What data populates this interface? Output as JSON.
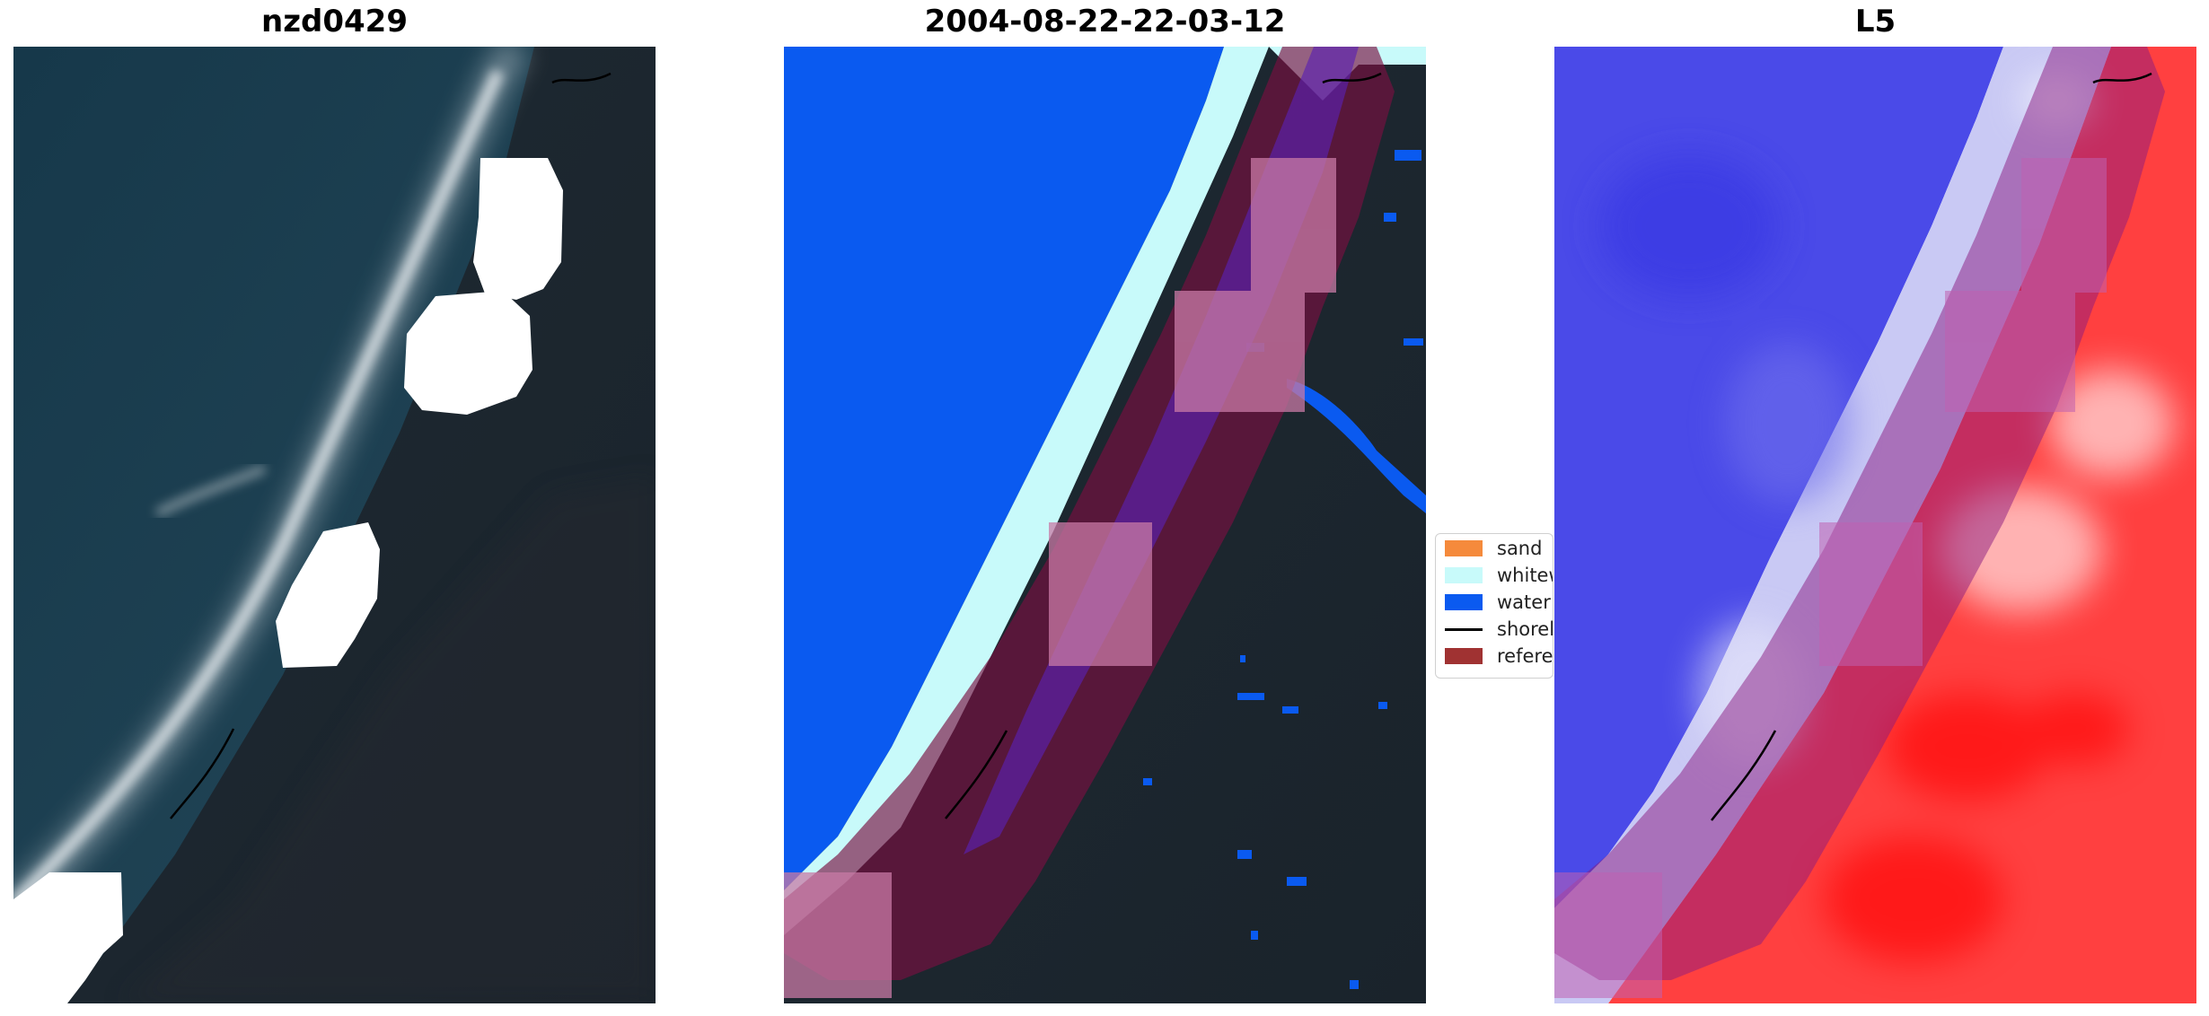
{
  "panels": [
    {
      "title": "nzd0429"
    },
    {
      "title": "2004-08-22-22-03-12"
    },
    {
      "title": "L5"
    }
  ],
  "legend": {
    "items": [
      {
        "label": "sand",
        "color": "#f58a3c"
      },
      {
        "label": "whitew",
        "color": "#c8fafa"
      },
      {
        "label": "water",
        "color": "#0a5af0"
      },
      {
        "label": "shorel",
        "color": "#000000"
      },
      {
        "label": "referen",
        "color": "#a03232"
      }
    ]
  },
  "colors": {
    "ocean_dark": "#1b3a4d",
    "land_dark": "#1c2832",
    "surf_white": "#d8dee2",
    "water_class": "#0a5af0",
    "whitewater_class": "#c8fafa",
    "reference_buffer": "#7a1040",
    "cloud_mask": "#ffffff",
    "index_blue": "#3030e6",
    "index_red": "#ff1a1a"
  }
}
